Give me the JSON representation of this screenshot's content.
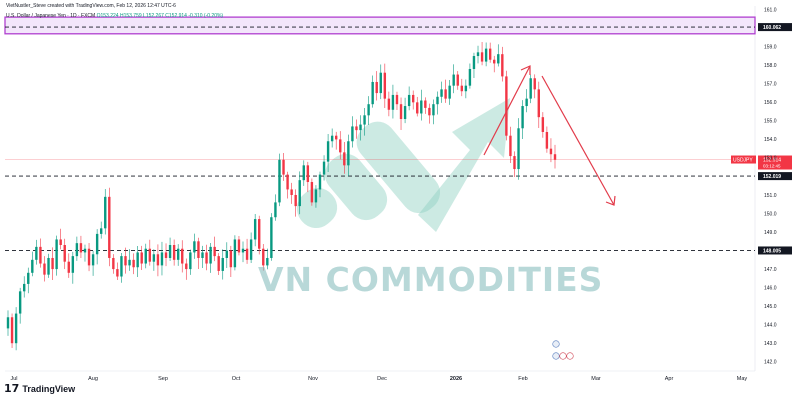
{
  "header": {
    "credit": "VietNustler_Steve created with TradingView.com, Feb 12, 2026 12:47 UTC-6",
    "symbol": "U.S. Dollar / Japanese Yen · 1D · FXCM",
    "ohlc": "O153.224 H153.759 L152.267 C152.914 -0.310 (-0.20%)"
  },
  "watermark": "VN COMMODITIES",
  "brand": "TradingView",
  "colors": {
    "up": "#089981",
    "down": "#f23645",
    "zone": "#b040d0",
    "arrow": "#e23b4a",
    "price_tag": "#f23645"
  },
  "chart_data": {
    "type": "candlestick",
    "ylim": [
      141.5,
      161.2
    ],
    "y_ticks": [
      161.0,
      159.0,
      158.0,
      157.0,
      156.0,
      155.0,
      154.0,
      153.0,
      151.0,
      150.0,
      149.0,
      147.0,
      146.0,
      145.0,
      144.0,
      143.0,
      142.0
    ],
    "x_ticks": [
      "Jul",
      "Aug",
      "Sep",
      "Oct",
      "Nov",
      "Dec",
      "2026",
      "Feb",
      "Mar",
      "Apr",
      "May"
    ],
    "levels": [
      {
        "label": "160.062",
        "value": 160.062
      },
      {
        "label": "152.019",
        "value": 152.019
      },
      {
        "label": "148.005",
        "value": 148.005
      }
    ],
    "resistance_zone": [
      159.7,
      160.6
    ],
    "last_price": {
      "symbol": "USDJPY",
      "value": "152.914",
      "countdown": "03:12:45"
    },
    "closes": [
      144.4,
      143.0,
      144.6,
      145.8,
      146.2,
      146.8,
      147.5,
      148.2,
      147.3,
      146.7,
      147.6,
      147.0,
      148.6,
      148.3,
      147.4,
      146.8,
      147.7,
      148.4,
      147.9,
      148.1,
      147.2,
      147.8,
      148.9,
      149.2,
      150.9,
      147.6,
      147.0,
      146.6,
      147.7,
      147.2,
      147.5,
      147.1,
      147.9,
      147.3,
      148.1,
      147.4,
      147.8,
      147.2,
      147.9,
      147.6,
      148.3,
      147.5,
      148.1,
      147.3,
      147.0,
      147.9,
      148.5,
      147.6,
      147.9,
      147.3,
      148.2,
      147.7,
      146.9,
      147.6,
      148.0,
      147.1,
      148.6,
      147.9,
      148.1,
      147.5,
      148.6,
      149.7,
      148.1,
      147.2,
      147.6,
      149.8,
      150.6,
      152.9,
      152.1,
      151.3,
      151.0,
      150.4,
      151.8,
      152.6,
      151.7,
      150.6,
      151.3,
      152.1,
      152.8,
      153.9,
      154.2,
      154.0,
      153.3,
      152.6,
      153.9,
      154.7,
      154.5,
      154.8,
      155.3,
      155.9,
      157.1,
      156.5,
      157.6,
      156.2,
      155.6,
      156.4,
      155.9,
      155.1,
      155.8,
      156.4,
      156.0,
      155.4,
      156.1,
      155.7,
      155.3,
      155.9,
      156.3,
      156.7,
      156.2,
      156.9,
      157.5,
      156.9,
      156.6,
      156.9,
      157.8,
      158.5,
      158.7,
      158.2,
      158.9,
      158.3,
      158.1,
      158.6,
      157.4,
      154.2,
      153.1,
      152.4,
      154.6,
      155.8,
      156.2,
      157.3,
      156.7,
      155.2,
      154.4,
      153.5,
      153.2,
      152.9
    ]
  }
}
